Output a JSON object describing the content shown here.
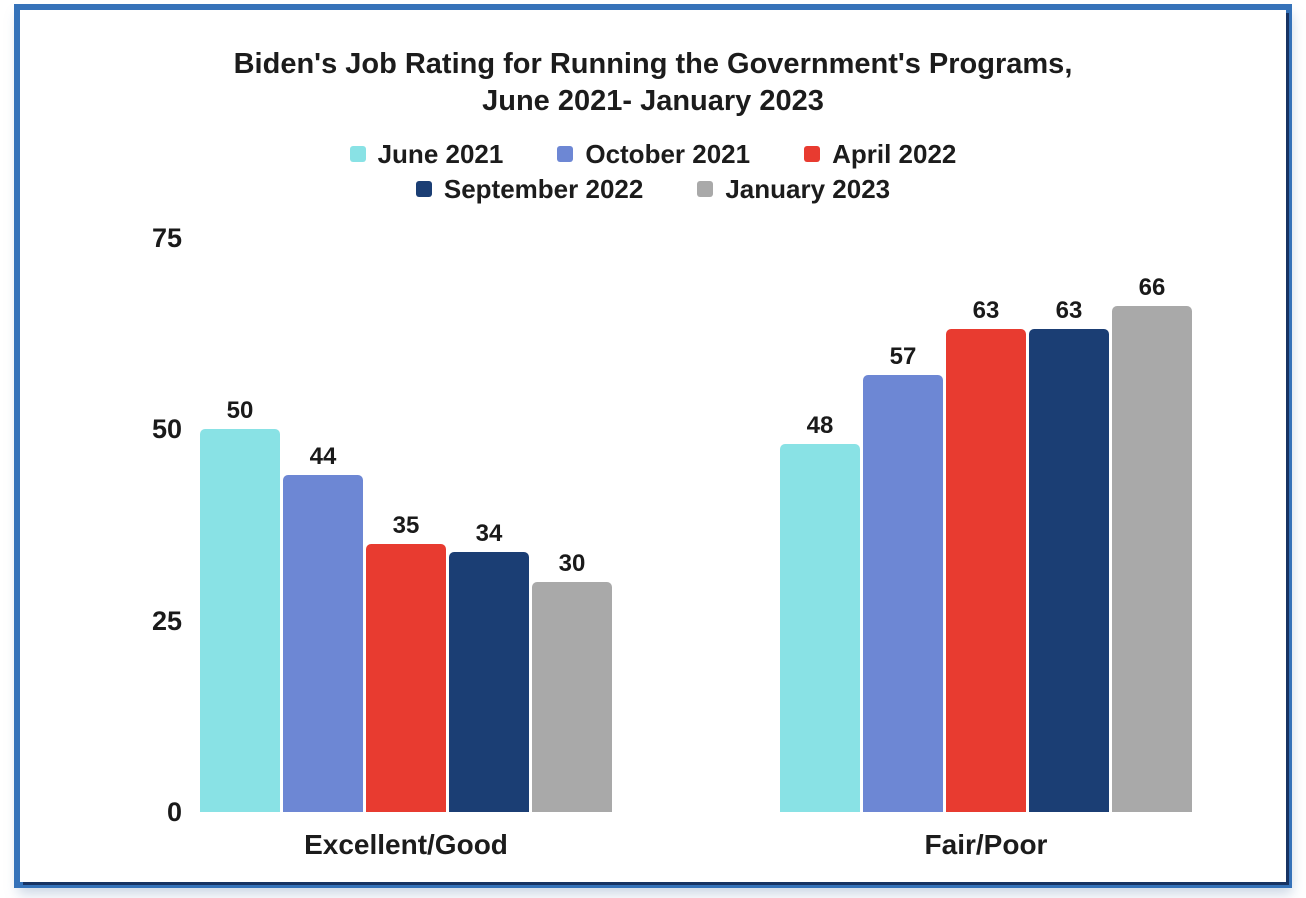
{
  "window": {
    "border_color": "#3572b9",
    "background_color": "#ffffff",
    "text_color": "#1c1c1c"
  },
  "chart_data": {
    "type": "bar",
    "title": "Biden's Job Rating for Running the Government's Programs, June 2021- January 2023",
    "title_lines": [
      "Biden's Job Rating for Running the Government's Programs,",
      "June 2021- January 2023"
    ],
    "categories": [
      "Excellent/Good",
      "Fair/Poor"
    ],
    "series": [
      {
        "name": "June 2021",
        "color": "#89E2E5",
        "values": [
          50,
          48
        ]
      },
      {
        "name": "October 2021",
        "color": "#6D87D4",
        "values": [
          44,
          57
        ]
      },
      {
        "name": "April 2022",
        "color": "#E83B30",
        "values": [
          35,
          63
        ]
      },
      {
        "name": "September 2022",
        "color": "#1B3E74",
        "values": [
          34,
          63
        ]
      },
      {
        "name": "January 2023",
        "color": "#A9A9A9",
        "values": [
          30,
          66
        ]
      }
    ],
    "yticks": [
      0,
      25,
      50,
      75
    ],
    "ylim": [
      0,
      75
    ],
    "grid": false,
    "axis_lines": false,
    "value_labels": true,
    "legend_position": "top",
    "legend_rows": [
      3,
      2
    ]
  }
}
